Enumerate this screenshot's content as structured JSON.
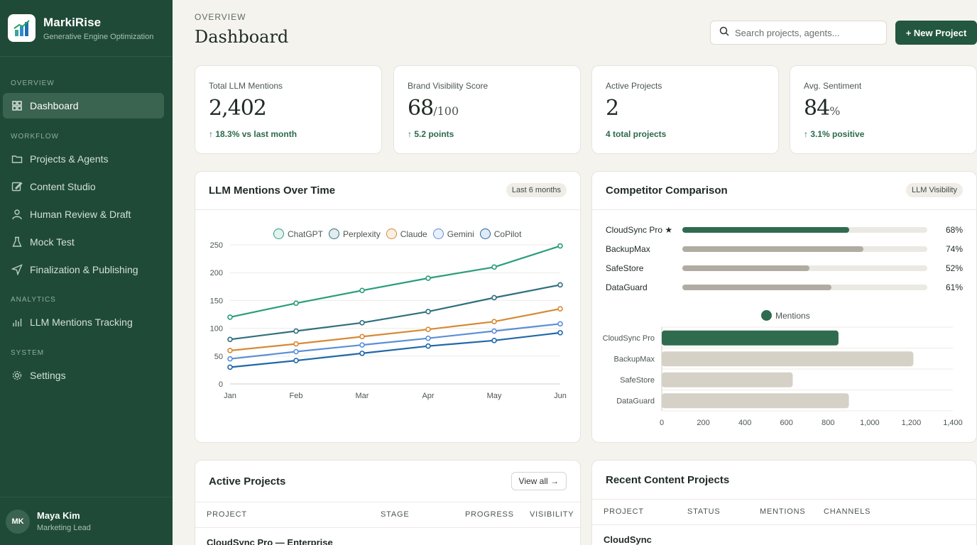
{
  "brand": {
    "name": "MarkiRise",
    "subtitle": "Generative Engine Optimization"
  },
  "nav": {
    "sections": [
      "Overview",
      "Workflow",
      "Analytics",
      "System"
    ],
    "items": [
      {
        "label": "Dashboard",
        "icon": "grid-icon",
        "active": true
      },
      {
        "label": "Projects & Agents",
        "icon": "folder-icon"
      },
      {
        "label": "Content Studio",
        "icon": "edit-icon"
      },
      {
        "label": "Human Review & Draft",
        "icon": "user-icon"
      },
      {
        "label": "Mock Test",
        "icon": "flask-icon"
      },
      {
        "label": "Finalization & Publishing",
        "icon": "send-icon"
      },
      {
        "label": "LLM Mentions Tracking",
        "icon": "bar-chart-icon"
      },
      {
        "label": "Settings",
        "icon": "gear-icon"
      }
    ]
  },
  "user": {
    "initials": "MK",
    "name": "Maya Kim",
    "role": "Marketing Lead"
  },
  "header": {
    "breadcrumb": "OVERVIEW",
    "title": "Dashboard",
    "search_placeholder": "Search projects, agents...",
    "new_project_label": "+ New Project"
  },
  "stats": [
    {
      "label": "Total LLM Mentions",
      "value": "2,402",
      "suffix": "",
      "delta": "↑ 18.3% vs last month"
    },
    {
      "label": "Brand Visibility Score",
      "value": "68",
      "suffix": "/100",
      "delta": "↑ 5.2 points"
    },
    {
      "label": "Active Projects",
      "value": "2",
      "suffix": "",
      "delta": "4 total projects"
    },
    {
      "label": "Avg. Sentiment",
      "value": "84",
      "suffix": "%",
      "delta": "↑ 3.1% positive"
    }
  ],
  "mentions_panel": {
    "title": "LLM Mentions Over Time",
    "range_label": "Last 6 months"
  },
  "competitor_panel": {
    "title": "Competitor Comparison",
    "badge": "LLM Visibility",
    "rows": [
      {
        "name": "CloudSync Pro ★",
        "pct": 68,
        "pct_label": "68%",
        "color": "#2f6b4f"
      },
      {
        "name": "BackupMax",
        "pct": 74,
        "pct_label": "74%",
        "color": "#b0aca2"
      },
      {
        "name": "SafeStore",
        "pct": 52,
        "pct_label": "52%",
        "color": "#b0aca2"
      },
      {
        "name": "DataGuard",
        "pct": 61,
        "pct_label": "61%",
        "color": "#b0aca2"
      }
    ]
  },
  "active_projects": {
    "title": "Active Projects",
    "view_all_label": "View all →",
    "columns": [
      "PROJECT",
      "STAGE",
      "PROGRESS",
      "VISIBILITY"
    ],
    "rows": [
      {
        "project": "CloudSync Pro — Enterprise"
      }
    ]
  },
  "recent_content": {
    "title": "Recent Content Projects",
    "columns": [
      "PROJECT",
      "STATUS",
      "MENTIONS",
      "CHANNELS"
    ],
    "rows": [
      {
        "project": "CloudSync"
      }
    ]
  },
  "chart_data": [
    {
      "type": "line",
      "x": [
        "Jan",
        "Feb",
        "Mar",
        "Apr",
        "May",
        "Jun"
      ],
      "ylim": [
        0,
        250
      ],
      "yticks": [
        0,
        50,
        100,
        150,
        200,
        250
      ],
      "grid": true,
      "legend": "top",
      "series": [
        {
          "name": "ChatGPT",
          "color": "#2a9d7c",
          "values": [
            120,
            145,
            168,
            190,
            210,
            248
          ]
        },
        {
          "name": "Perplexity",
          "color": "#2f6f7e",
          "values": [
            80,
            95,
            110,
            130,
            155,
            178
          ]
        },
        {
          "name": "Claude",
          "color": "#d68a35",
          "values": [
            60,
            72,
            85,
            98,
            112,
            135
          ]
        },
        {
          "name": "Gemini",
          "color": "#5b8fd6",
          "values": [
            45,
            58,
            70,
            82,
            95,
            108
          ]
        },
        {
          "name": "CoPilot",
          "color": "#2068a8",
          "values": [
            30,
            42,
            55,
            68,
            78,
            92
          ]
        }
      ]
    },
    {
      "type": "bar",
      "orientation": "horizontal",
      "categories": [
        "CloudSync Pro",
        "BackupMax",
        "SafeStore",
        "DataGuard"
      ],
      "series": [
        {
          "name": "Mentions",
          "values": [
            850,
            1210,
            630,
            900
          ]
        }
      ],
      "colors": [
        "#2f6b4f",
        "#d6d1c6",
        "#d6d1c6",
        "#d6d1c6"
      ],
      "xlim": [
        0,
        1400
      ],
      "xticks": [
        "0",
        "200",
        "400",
        "600",
        "800",
        "1,000",
        "1,200",
        "1,400"
      ],
      "grid": true,
      "legend": "top"
    }
  ]
}
